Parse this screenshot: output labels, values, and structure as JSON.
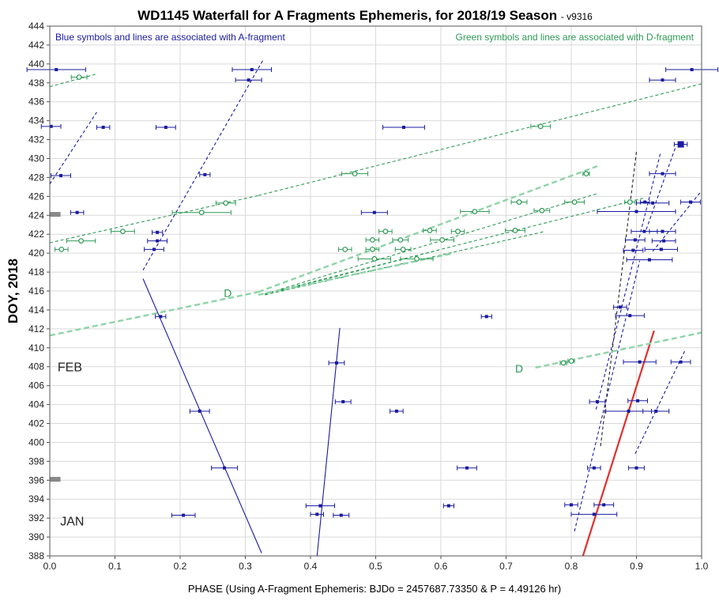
{
  "chart_data": {
    "type": "scatter",
    "title": "WD1145 Waterfall for A Fragments Ephemeris, for 2018/19 Season",
    "version": "- v9316",
    "xlabel": "PHASE (Using A-Fragment Ephemeris: BJDo = 2457687.73350 & P = 4.49126 hr)",
    "ylabel": "DOY, 2018",
    "xlim": [
      0.0,
      1.0
    ],
    "ylim": [
      388,
      444
    ],
    "x_ticks": [
      "0.0",
      "0.1",
      "0.2",
      "0.3",
      "0.4",
      "0.5",
      "0.6",
      "0.7",
      "0.8",
      "0.9",
      "1.0"
    ],
    "y_ticks": [
      "388",
      "390",
      "392",
      "394",
      "396",
      "398",
      "400",
      "402",
      "404",
      "406",
      "408",
      "410",
      "412",
      "414",
      "416",
      "418",
      "420",
      "422",
      "424",
      "426",
      "428",
      "430",
      "432",
      "434",
      "436",
      "438",
      "440",
      "442",
      "444"
    ],
    "grid": true,
    "notes": {
      "blue": "Blue symbols and lines are associated with A-fragment",
      "green": "Green symbols and lines are associated with D-fragment"
    },
    "colors": {
      "blue": "#1a1aa0",
      "green": "#2e9a55",
      "light_green": "#8fd4a8",
      "red": "#e03030",
      "black": "#222222",
      "marker_gray": "#888888"
    },
    "month_labels": [
      {
        "text": "FEB",
        "x": 0.012,
        "y": 408
      },
      {
        "text": "JAN",
        "x": 0.016,
        "y": 391.7
      }
    ],
    "fragment_labels": [
      {
        "text": "D",
        "x": 0.267,
        "y": 415.8
      },
      {
        "text": "D",
        "x": 0.714,
        "y": 407.8
      }
    ],
    "season_markers": [
      {
        "x": 0.008,
        "y": 424.1
      },
      {
        "x": 0.008,
        "y": 396.1
      }
    ],
    "series": [
      {
        "name": "A-fragment",
        "marker": "filled-square",
        "color": "#1a1aa0",
        "points": [
          {
            "x": 0.01,
            "y": 439.4,
            "xerr": 0.045
          },
          {
            "x": 0.31,
            "y": 439.4,
            "xerr": 0.03
          },
          {
            "x": 0.985,
            "y": 439.4,
            "xerr": 0.04
          },
          {
            "x": 0.305,
            "y": 438.3,
            "xerr": 0.02
          },
          {
            "x": 0.94,
            "y": 438.3,
            "xerr": 0.02
          },
          {
            "x": 0.002,
            "y": 433.4,
            "xerr": 0.015
          },
          {
            "x": 0.082,
            "y": 433.3,
            "xerr": 0.01
          },
          {
            "x": 0.178,
            "y": 433.3,
            "xerr": 0.015
          },
          {
            "x": 0.543,
            "y": 433.3,
            "xerr": 0.032
          },
          {
            "x": 0.968,
            "y": 431.5,
            "xerr": 0.01,
            "big": true
          },
          {
            "x": 0.017,
            "y": 428.2,
            "xerr": 0.015
          },
          {
            "x": 0.238,
            "y": 428.3,
            "xerr": 0.008
          },
          {
            "x": 0.94,
            "y": 428.4,
            "xerr": 0.02
          },
          {
            "x": 0.913,
            "y": 425.4,
            "xerr": 0.007
          },
          {
            "x": 0.925,
            "y": 425.3,
            "xerr": 0.025
          },
          {
            "x": 0.983,
            "y": 425.4,
            "xerr": 0.015
          },
          {
            "x": 0.042,
            "y": 424.3,
            "xerr": 0.01
          },
          {
            "x": 0.498,
            "y": 424.3,
            "xerr": 0.02
          },
          {
            "x": 0.9,
            "y": 424.4,
            "xerr": 0.06
          },
          {
            "x": 0.165,
            "y": 422.2,
            "xerr": 0.008
          },
          {
            "x": 0.912,
            "y": 422.3,
            "xerr": 0.02
          },
          {
            "x": 0.94,
            "y": 422.3,
            "xerr": 0.02
          },
          {
            "x": 0.165,
            "y": 421.3,
            "xerr": 0.015
          },
          {
            "x": 0.898,
            "y": 421.4,
            "xerr": 0.015
          },
          {
            "x": 0.942,
            "y": 421.3,
            "xerr": 0.018
          },
          {
            "x": 0.16,
            "y": 420.4,
            "xerr": 0.015
          },
          {
            "x": 0.895,
            "y": 420.3,
            "xerr": 0.015
          },
          {
            "x": 0.938,
            "y": 420.4,
            "xerr": 0.025
          },
          {
            "x": 0.92,
            "y": 419.3,
            "xerr": 0.035
          },
          {
            "x": 0.17,
            "y": 413.3,
            "xerr": 0.008
          },
          {
            "x": 0.67,
            "y": 413.3,
            "xerr": 0.008
          },
          {
            "x": 0.875,
            "y": 414.3,
            "xerr": 0.01
          },
          {
            "x": 0.89,
            "y": 413.4,
            "xerr": 0.022
          },
          {
            "x": 0.44,
            "y": 408.4,
            "xerr": 0.012
          },
          {
            "x": 0.905,
            "y": 408.5,
            "xerr": 0.025
          },
          {
            "x": 0.968,
            "y": 408.5,
            "xerr": 0.015
          },
          {
            "x": 0.45,
            "y": 404.3,
            "xerr": 0.012
          },
          {
            "x": 0.84,
            "y": 404.3,
            "xerr": 0.012
          },
          {
            "x": 0.902,
            "y": 404.4,
            "xerr": 0.015
          },
          {
            "x": 0.23,
            "y": 403.3,
            "xerr": 0.015
          },
          {
            "x": 0.532,
            "y": 403.3,
            "xerr": 0.01
          },
          {
            "x": 0.888,
            "y": 403.3,
            "xerr": 0.035
          },
          {
            "x": 0.93,
            "y": 403.3,
            "xerr": 0.02
          },
          {
            "x": 0.268,
            "y": 397.3,
            "xerr": 0.02
          },
          {
            "x": 0.64,
            "y": 397.3,
            "xerr": 0.015
          },
          {
            "x": 0.835,
            "y": 397.3,
            "xerr": 0.01
          },
          {
            "x": 0.9,
            "y": 397.3,
            "xerr": 0.012
          },
          {
            "x": 0.415,
            "y": 393.3,
            "xerr": 0.022
          },
          {
            "x": 0.612,
            "y": 393.3,
            "xerr": 0.008
          },
          {
            "x": 0.8,
            "y": 393.4,
            "xerr": 0.01
          },
          {
            "x": 0.85,
            "y": 393.4,
            "xerr": 0.015
          },
          {
            "x": 0.205,
            "y": 392.3,
            "xerr": 0.018
          },
          {
            "x": 0.41,
            "y": 392.4,
            "xerr": 0.01
          },
          {
            "x": 0.447,
            "y": 392.3,
            "xerr": 0.012
          },
          {
            "x": 0.835,
            "y": 392.4,
            "xerr": 0.035
          }
        ]
      },
      {
        "name": "D-fragment",
        "marker": "open-circle",
        "color": "#2e9a55",
        "points": [
          {
            "x": 0.045,
            "y": 438.6,
            "xerr": 0.012
          },
          {
            "x": 0.753,
            "y": 433.4,
            "xerr": 0.015
          },
          {
            "x": 0.468,
            "y": 428.4,
            "xerr": 0.02
          },
          {
            "x": 0.823,
            "y": 428.4,
            "xerr": 0.005
          },
          {
            "x": 0.27,
            "y": 425.3,
            "xerr": 0.015
          },
          {
            "x": 0.72,
            "y": 425.4,
            "xerr": 0.012
          },
          {
            "x": 0.805,
            "y": 425.4,
            "xerr": 0.015
          },
          {
            "x": 0.89,
            "y": 425.4,
            "xerr": 0.008
          },
          {
            "x": 0.233,
            "y": 424.3,
            "xerr": 0.045
          },
          {
            "x": 0.652,
            "y": 424.4,
            "xerr": 0.022
          },
          {
            "x": 0.755,
            "y": 424.5,
            "xerr": 0.012
          },
          {
            "x": 0.112,
            "y": 422.3,
            "xerr": 0.018
          },
          {
            "x": 0.515,
            "y": 422.3,
            "xerr": 0.01
          },
          {
            "x": 0.583,
            "y": 422.4,
            "xerr": 0.01
          },
          {
            "x": 0.626,
            "y": 422.3,
            "xerr": 0.01
          },
          {
            "x": 0.714,
            "y": 422.4,
            "xerr": 0.015
          },
          {
            "x": 0.048,
            "y": 421.3,
            "xerr": 0.022
          },
          {
            "x": 0.495,
            "y": 421.4,
            "xerr": 0.01
          },
          {
            "x": 0.538,
            "y": 421.4,
            "xerr": 0.012
          },
          {
            "x": 0.602,
            "y": 421.4,
            "xerr": 0.018
          },
          {
            "x": 0.018,
            "y": 420.4,
            "xerr": 0.01
          },
          {
            "x": 0.453,
            "y": 420.4,
            "xerr": 0.01
          },
          {
            "x": 0.495,
            "y": 420.4,
            "xerr": 0.01
          },
          {
            "x": 0.542,
            "y": 420.4,
            "xerr": 0.012
          },
          {
            "x": 0.498,
            "y": 419.4,
            "xerr": 0.025
          },
          {
            "x": 0.563,
            "y": 419.4,
            "xerr": 0.025
          },
          {
            "x": 0.788,
            "y": 408.4,
            "xerr": 0.005
          },
          {
            "x": 0.8,
            "y": 408.6,
            "xerr": 0.005
          }
        ]
      }
    ],
    "lines": [
      {
        "color": "#1a1aa0",
        "style": "dashed",
        "points": [
          [
            0.0,
            427.3
          ],
          [
            0.072,
            434.9
          ]
        ]
      },
      {
        "color": "#1a1aa0",
        "style": "dashed",
        "points": [
          [
            0.143,
            418.2
          ],
          [
            0.327,
            440.4
          ]
        ]
      },
      {
        "color": "#1a1aa0",
        "style": "solid",
        "points": [
          [
            0.143,
            417.3
          ],
          [
            0.325,
            388.3
          ]
        ]
      },
      {
        "color": "#1a1aa0",
        "style": "solid",
        "points": [
          [
            0.41,
            388.0
          ],
          [
            0.445,
            412.1
          ]
        ]
      },
      {
        "color": "#1a1aa0",
        "style": "dashed",
        "points": [
          [
            0.805,
            390.6
          ],
          [
            0.905,
            419.2
          ]
        ]
      },
      {
        "color": "#1a1aa0",
        "style": "dashed",
        "points": [
          [
            0.838,
            403.5
          ],
          [
            0.937,
            430.6
          ]
        ]
      },
      {
        "color": "#1a1aa0",
        "style": "dashed",
        "points": [
          [
            0.898,
            398.8
          ],
          [
            0.975,
            409.8
          ]
        ]
      },
      {
        "color": "#1a1aa0",
        "style": "dashed",
        "points": [
          [
            0.925,
            420.2
          ],
          [
            1.0,
            426.6
          ]
        ]
      },
      {
        "color": "#1a1aa0",
        "style": "dashed",
        "points": [
          [
            0.915,
            422.5
          ],
          [
            0.96,
            431.2
          ]
        ]
      },
      {
        "color": "#222222",
        "style": "dashed",
        "points": [
          [
            0.845,
            399.6
          ],
          [
            0.9,
            430.7
          ]
        ]
      },
      {
        "color": "#e03030",
        "style": "solid",
        "width": 2.2,
        "points": [
          [
            0.818,
            388.0
          ],
          [
            0.927,
            411.8
          ]
        ]
      },
      {
        "color": "#2e9a55",
        "style": "dashed",
        "points": [
          [
            0.0,
            437.6
          ],
          [
            0.07,
            438.9
          ]
        ]
      },
      {
        "color": "#2e9a55",
        "style": "dashed",
        "points": [
          [
            0.0,
            421.1
          ],
          [
            0.32,
            426.1
          ]
        ]
      },
      {
        "color": "#2e9a55",
        "style": "dashed",
        "points": [
          [
            0.32,
            426.1
          ],
          [
            1.0,
            437.9
          ]
        ]
      },
      {
        "color": "#2e9a55",
        "style": "dashed",
        "points": [
          [
            0.33,
            415.6
          ],
          [
            0.76,
            422.3
          ]
        ]
      },
      {
        "color": "#2e9a55",
        "style": "dashed",
        "points": [
          [
            0.33,
            415.7
          ],
          [
            0.84,
            426.3
          ]
        ]
      },
      {
        "color": "#2e9a55",
        "style": "dashed",
        "points": [
          [
            0.33,
            415.7
          ],
          [
            0.91,
            425.8
          ]
        ]
      },
      {
        "color": "#2e9a55",
        "style": "dashed",
        "points": [
          [
            0.33,
            415.6
          ],
          [
            0.6,
            420.4
          ]
        ]
      },
      {
        "color": "#8fd4a8",
        "style": "dashed",
        "width": 2.4,
        "points": [
          [
            0.0,
            411.3
          ],
          [
            0.32,
            415.9
          ]
        ]
      },
      {
        "color": "#8fd4a8",
        "style": "dashed",
        "width": 2.4,
        "points": [
          [
            0.32,
            415.9
          ],
          [
            0.84,
            429.2
          ]
        ]
      },
      {
        "color": "#8fd4a8",
        "style": "dashed",
        "width": 2.4,
        "points": [
          [
            0.32,
            415.6
          ],
          [
            0.62,
            420.0
          ]
        ]
      },
      {
        "color": "#8fd4a8",
        "style": "dashed",
        "width": 2.4,
        "points": [
          [
            0.745,
            407.9
          ],
          [
            1.0,
            411.6
          ]
        ]
      }
    ]
  }
}
